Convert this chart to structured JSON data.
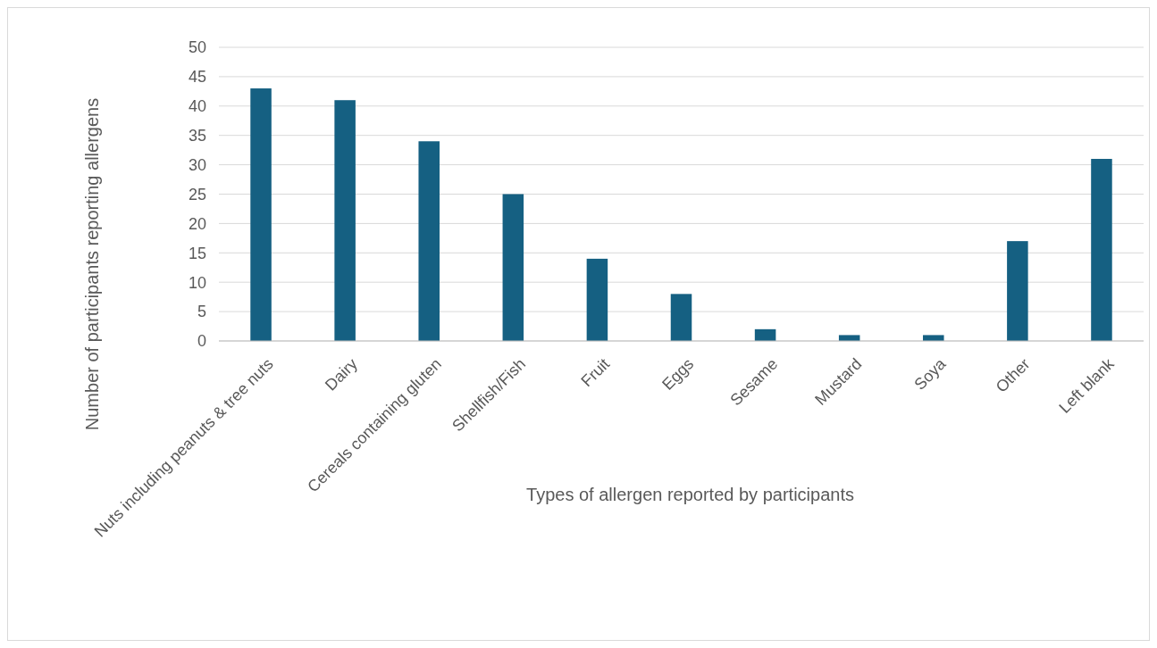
{
  "chart_data": {
    "type": "bar",
    "xlabel": "Types of allergen reported by participants",
    "ylabel": "Number of participants reporting allergens",
    "categories": [
      "Nuts including peanuts & tree nuts",
      "Dairy",
      "Cereals containing gluten",
      "Shellfish/Fish",
      "Fruit",
      "Eggs",
      "Sesame",
      "Mustard",
      "Soya",
      "Other",
      "Left blank"
    ],
    "values": [
      43,
      41,
      34,
      25,
      14,
      8,
      2,
      1,
      1,
      17,
      31
    ],
    "color": "#156082",
    "ylim": [
      0,
      50
    ],
    "yticks": [
      0,
      5,
      10,
      15,
      20,
      25,
      30,
      35,
      40,
      45,
      50
    ],
    "grid": "y"
  }
}
